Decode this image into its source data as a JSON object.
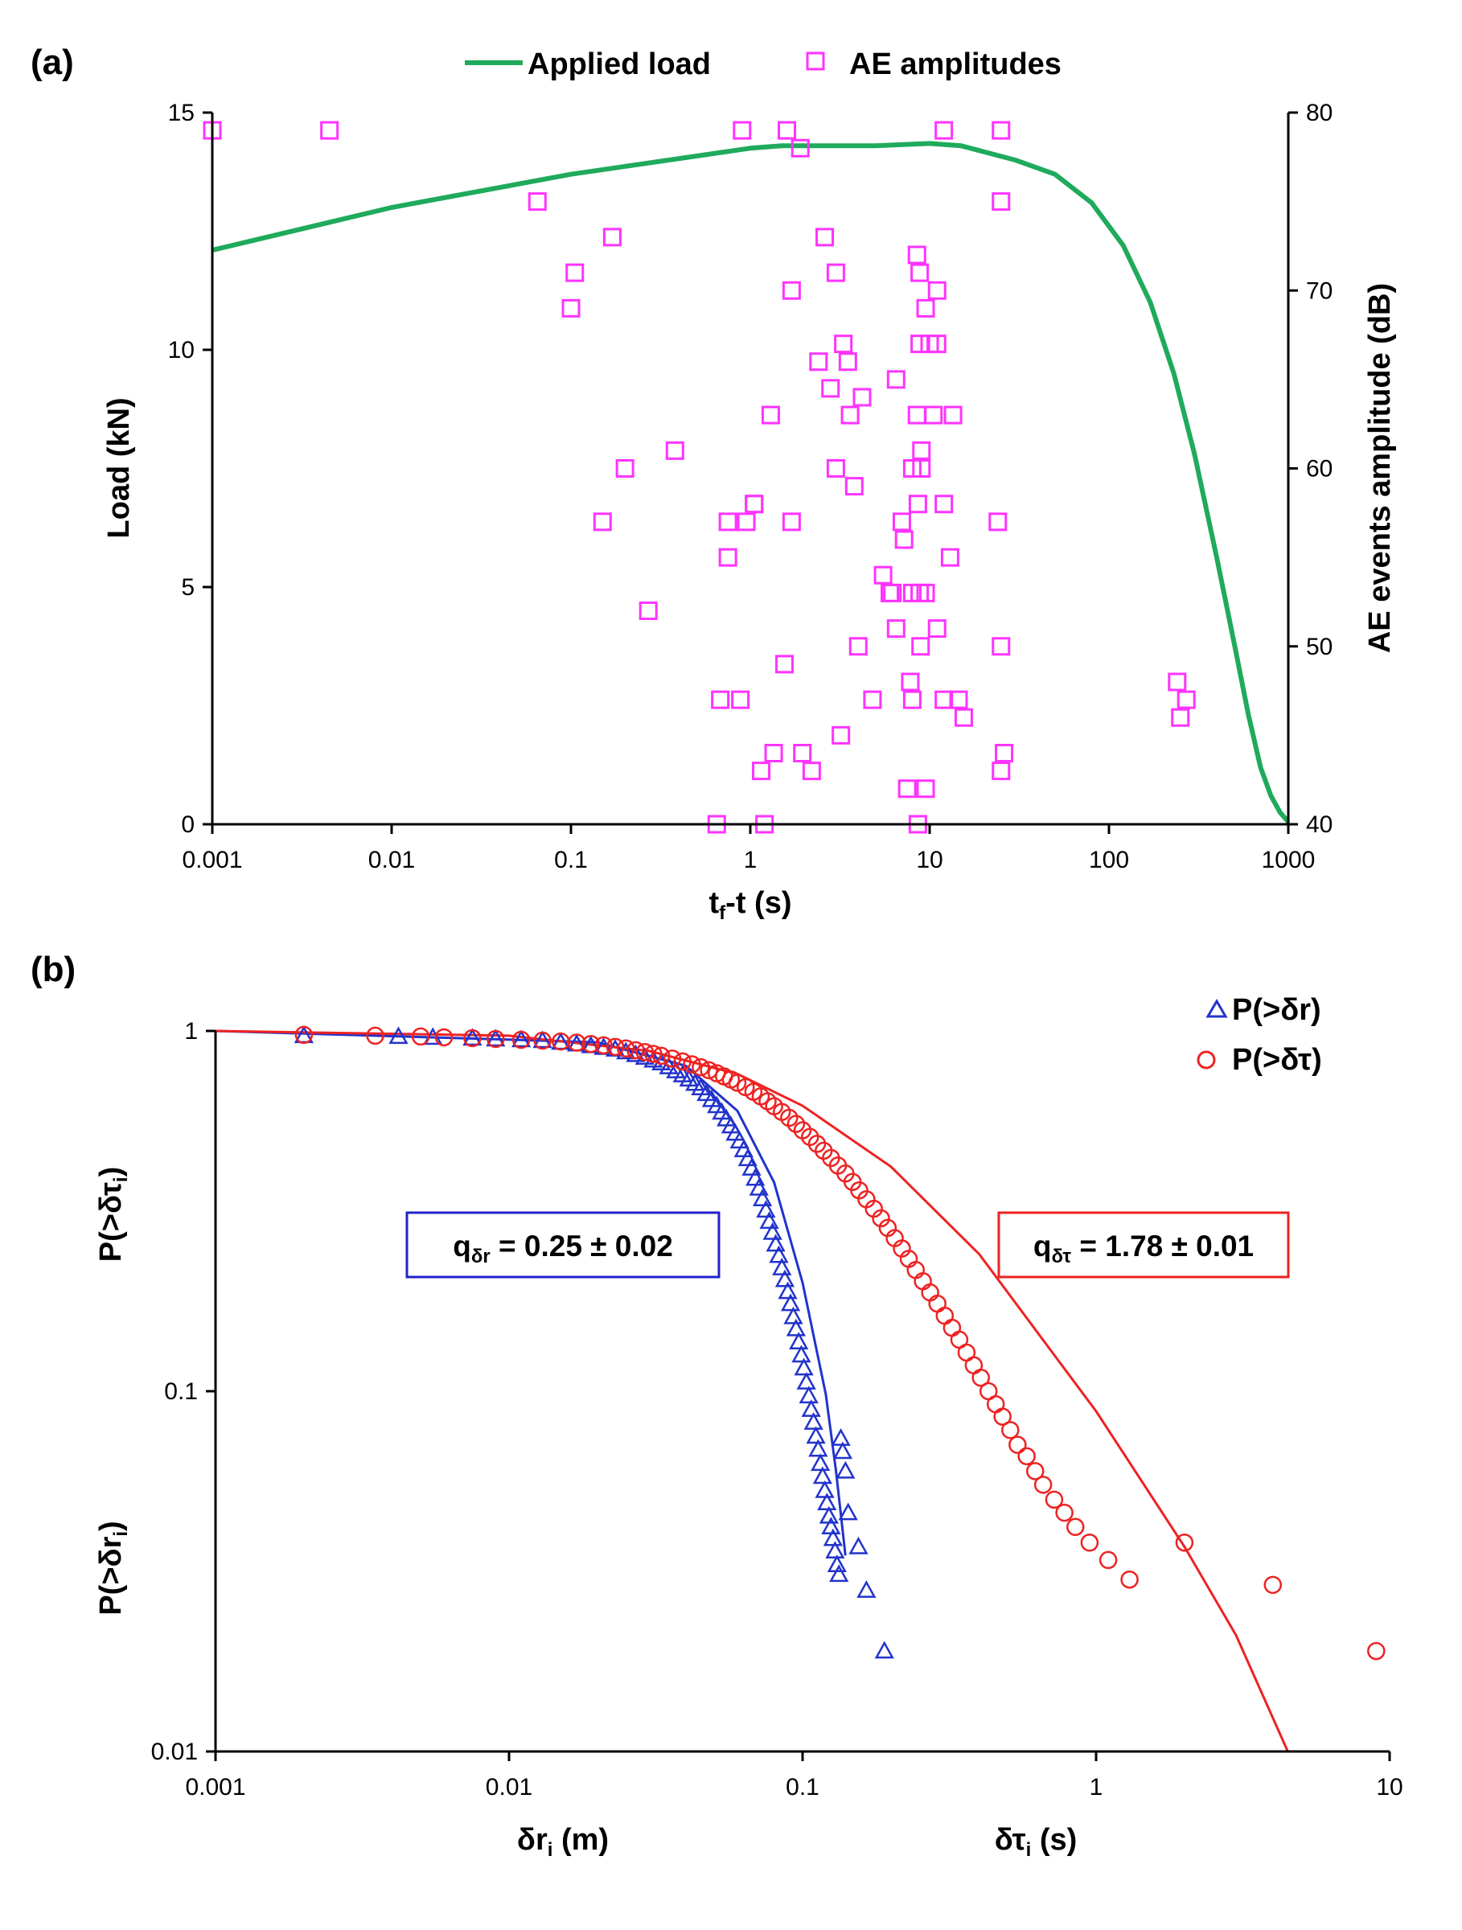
{
  "chart_data": [
    {
      "panel": "(a)",
      "type": "line",
      "xscale": "log",
      "xlim": [
        0.001,
        1000
      ],
      "x_ticks": [
        "0.001",
        "0.01",
        "0.1",
        "1",
        "10",
        "100",
        "1000"
      ],
      "xlabel": {
        "main": "t",
        "sub": "f",
        "rest": "-t (s)"
      },
      "ylabel": "Load (kN)",
      "ylim": [
        0,
        15
      ],
      "y_ticks": [
        "0",
        "5",
        "10",
        "15"
      ],
      "y2label": "AE events amplitude (dB)",
      "y2lim": [
        40,
        80
      ],
      "y2_ticks": [
        "40",
        "50",
        "60",
        "70",
        "80"
      ],
      "legend_position": "top",
      "series": [
        {
          "name": "Applied load",
          "type": "line",
          "color": "#1faa5c",
          "x": [
            0.001,
            0.01,
            0.1,
            1,
            1.5,
            5,
            10,
            15,
            30,
            50,
            80,
            120,
            170,
            230,
            300,
            400,
            500,
            600,
            700,
            800,
            900,
            1000
          ],
          "y": [
            12.1,
            13.0,
            13.7,
            14.25,
            14.3,
            14.3,
            14.35,
            14.3,
            14.0,
            13.7,
            13.1,
            12.2,
            11.0,
            9.5,
            7.8,
            5.6,
            3.8,
            2.3,
            1.2,
            0.6,
            0.25,
            0.05
          ]
        },
        {
          "name": "AE amplitudes",
          "type": "scatter",
          "axis": "y2",
          "color": "#ff33ff",
          "marker": "square",
          "x": [
            0.001,
            0.0045,
            0.9,
            1.6,
            1.9,
            12,
            25,
            0.065,
            25,
            0.17,
            2.6,
            0.105,
            3,
            8.5,
            8.8,
            11,
            1.7,
            9.5,
            0.1,
            3.3,
            10,
            8.8,
            11,
            2.4,
            3.5,
            6.5,
            2.8,
            4.2,
            0.38,
            1.3,
            3.6,
            8.5,
            10.5,
            13.5,
            9,
            0.2,
            3,
            8,
            3.8,
            9,
            1.05,
            1.05,
            0.15,
            0.95,
            0.75,
            1.7,
            7,
            8.6,
            12,
            24,
            0.75,
            7.2,
            13,
            5.5,
            6,
            6.2,
            8,
            8.8,
            9.5,
            0.27,
            6.5,
            11,
            4,
            8.9,
            25,
            1.55,
            7.8,
            0.68,
            0.88,
            4.8,
            8,
            12,
            14.5,
            240,
            270,
            15.5,
            250,
            3.2,
            1.35,
            1.95,
            2.2,
            26,
            1.15,
            25,
            7.5,
            9.5,
            0.65,
            1.2,
            8.6
          ],
          "y": [
            79,
            79,
            79,
            79,
            78,
            79,
            79,
            75,
            75,
            73,
            73,
            71,
            71,
            72,
            71,
            70,
            70,
            69,
            69,
            67,
            67,
            67,
            67,
            66,
            66,
            65,
            64.5,
            64,
            61,
            63,
            63,
            63,
            63,
            63,
            61,
            60,
            60,
            60,
            59,
            60,
            58,
            58,
            57,
            57,
            57,
            57,
            57,
            58,
            58,
            57,
            55,
            56,
            55,
            54,
            53,
            53,
            53,
            53,
            53,
            52,
            51,
            51,
            50,
            50,
            50,
            49,
            48,
            47,
            47,
            47,
            47,
            47,
            47,
            48,
            47,
            46,
            46,
            45,
            44,
            44,
            43,
            44,
            43,
            43,
            42,
            42,
            40,
            40,
            40
          ]
        }
      ]
    },
    {
      "panel": "(b)",
      "type": "scatter",
      "xscale": "log",
      "yscale": "log",
      "xlim": [
        0.001,
        10
      ],
      "ylim": [
        0.01,
        1
      ],
      "x_ticks": [
        "0.001",
        "0.01",
        "0.1",
        "1",
        "10"
      ],
      "y_ticks": [
        "0.01",
        "0.1",
        "1"
      ],
      "xlabel_left": {
        "main": "δr",
        "sub": "i",
        "rest": " (m)"
      },
      "xlabel_right": {
        "main": "δτ",
        "sub": "i",
        "rest": " (s)"
      },
      "ylabel_top": {
        "main": "P(>δτ",
        "sub": "i",
        "rest": ")"
      },
      "ylabel_bottom": {
        "main": "P(>δr",
        "sub": "i",
        "rest": ")"
      },
      "legend_position": "top-right",
      "annotations": [
        {
          "id": "blue",
          "main": "q",
          "sub": "δr",
          "rest": " = 0.25 ± 0.02",
          "color": "#2222cc"
        },
        {
          "id": "red",
          "main": "q",
          "sub": "δτ",
          "rest": " = 1.78 ± 0.01",
          "color": "#ee2222"
        }
      ],
      "series": [
        {
          "name": "P(>δr)",
          "marker": "triangle",
          "color": "#2233cc",
          "q": 0.25,
          "fit_x": [
            0.001,
            0.02,
            0.04,
            0.06,
            0.08,
            0.1,
            0.12,
            0.13,
            0.14
          ],
          "fit_y": [
            1.0,
            0.93,
            0.8,
            0.6,
            0.38,
            0.2,
            0.098,
            0.06,
            0.035
          ],
          "x": [
            0.002,
            0.0042,
            0.0055,
            0.0075,
            0.009,
            0.011,
            0.013,
            0.015,
            0.017,
            0.019,
            0.021,
            0.023,
            0.025,
            0.027,
            0.029,
            0.031,
            0.033,
            0.035,
            0.037,
            0.039,
            0.041,
            0.043,
            0.045,
            0.047,
            0.049,
            0.051,
            0.053,
            0.055,
            0.057,
            0.059,
            0.061,
            0.063,
            0.065,
            0.067,
            0.069,
            0.071,
            0.073,
            0.075,
            0.077,
            0.079,
            0.081,
            0.083,
            0.085,
            0.087,
            0.089,
            0.091,
            0.093,
            0.095,
            0.097,
            0.099,
            0.101,
            0.103,
            0.105,
            0.107,
            0.109,
            0.111,
            0.113,
            0.115,
            0.117,
            0.119,
            0.121,
            0.123,
            0.125,
            0.127,
            0.129,
            0.131,
            0.133,
            0.135,
            0.137,
            0.14,
            0.143,
            0.155,
            0.165,
            0.19
          ],
          "y": [
            0.97,
            0.965,
            0.96,
            0.955,
            0.95,
            0.945,
            0.94,
            0.93,
            0.92,
            0.91,
            0.9,
            0.89,
            0.875,
            0.86,
            0.845,
            0.83,
            0.815,
            0.795,
            0.775,
            0.755,
            0.735,
            0.715,
            0.695,
            0.67,
            0.645,
            0.62,
            0.595,
            0.57,
            0.545,
            0.52,
            0.495,
            0.468,
            0.442,
            0.416,
            0.39,
            0.366,
            0.342,
            0.318,
            0.296,
            0.276,
            0.256,
            0.238,
            0.22,
            0.204,
            0.189,
            0.175,
            0.161,
            0.149,
            0.137,
            0.126,
            0.116,
            0.106,
            0.097,
            0.089,
            0.082,
            0.075,
            0.069,
            0.063,
            0.058,
            0.053,
            0.049,
            0.045,
            0.042,
            0.039,
            0.036,
            0.033,
            0.031,
            0.074,
            0.068,
            0.06,
            0.046,
            0.037,
            0.028,
            0.019
          ]
        },
        {
          "name": "P(>δτ)",
          "marker": "circle",
          "color": "#ee2222",
          "q": 1.78,
          "fit_x": [
            0.001,
            0.01,
            0.03,
            0.06,
            0.1,
            0.2,
            0.4,
            0.7,
            1.0,
            2.0,
            3.0,
            4.5
          ],
          "fit_y": [
            1.0,
            0.97,
            0.88,
            0.76,
            0.62,
            0.42,
            0.24,
            0.13,
            0.088,
            0.037,
            0.021,
            0.01
          ],
          "x": [
            0.002,
            0.0035,
            0.005,
            0.006,
            0.0075,
            0.009,
            0.011,
            0.013,
            0.015,
            0.017,
            0.019,
            0.021,
            0.023,
            0.025,
            0.027,
            0.029,
            0.031,
            0.033,
            0.036,
            0.039,
            0.042,
            0.045,
            0.048,
            0.051,
            0.054,
            0.057,
            0.06,
            0.064,
            0.068,
            0.072,
            0.076,
            0.08,
            0.085,
            0.09,
            0.095,
            0.1,
            0.106,
            0.112,
            0.118,
            0.125,
            0.132,
            0.14,
            0.148,
            0.156,
            0.165,
            0.175,
            0.185,
            0.195,
            0.206,
            0.218,
            0.23,
            0.243,
            0.257,
            0.272,
            0.288,
            0.305,
            0.323,
            0.342,
            0.362,
            0.383,
            0.405,
            0.43,
            0.455,
            0.48,
            0.51,
            0.54,
            0.58,
            0.62,
            0.66,
            0.72,
            0.78,
            0.85,
            0.95,
            1.1,
            1.3,
            2.0,
            4.0,
            9.0
          ],
          "y": [
            0.975,
            0.97,
            0.965,
            0.96,
            0.955,
            0.95,
            0.945,
            0.94,
            0.935,
            0.928,
            0.92,
            0.912,
            0.903,
            0.894,
            0.884,
            0.874,
            0.864,
            0.853,
            0.838,
            0.823,
            0.808,
            0.793,
            0.778,
            0.763,
            0.748,
            0.733,
            0.718,
            0.698,
            0.678,
            0.658,
            0.638,
            0.618,
            0.596,
            0.574,
            0.552,
            0.53,
            0.508,
            0.486,
            0.465,
            0.444,
            0.423,
            0.402,
            0.381,
            0.361,
            0.341,
            0.321,
            0.302,
            0.284,
            0.266,
            0.249,
            0.233,
            0.217,
            0.202,
            0.188,
            0.175,
            0.162,
            0.15,
            0.139,
            0.128,
            0.118,
            0.109,
            0.1,
            0.092,
            0.085,
            0.078,
            0.071,
            0.066,
            0.06,
            0.055,
            0.05,
            0.046,
            0.042,
            0.038,
            0.034,
            0.03,
            0.038,
            0.029,
            0.019
          ]
        }
      ]
    }
  ]
}
